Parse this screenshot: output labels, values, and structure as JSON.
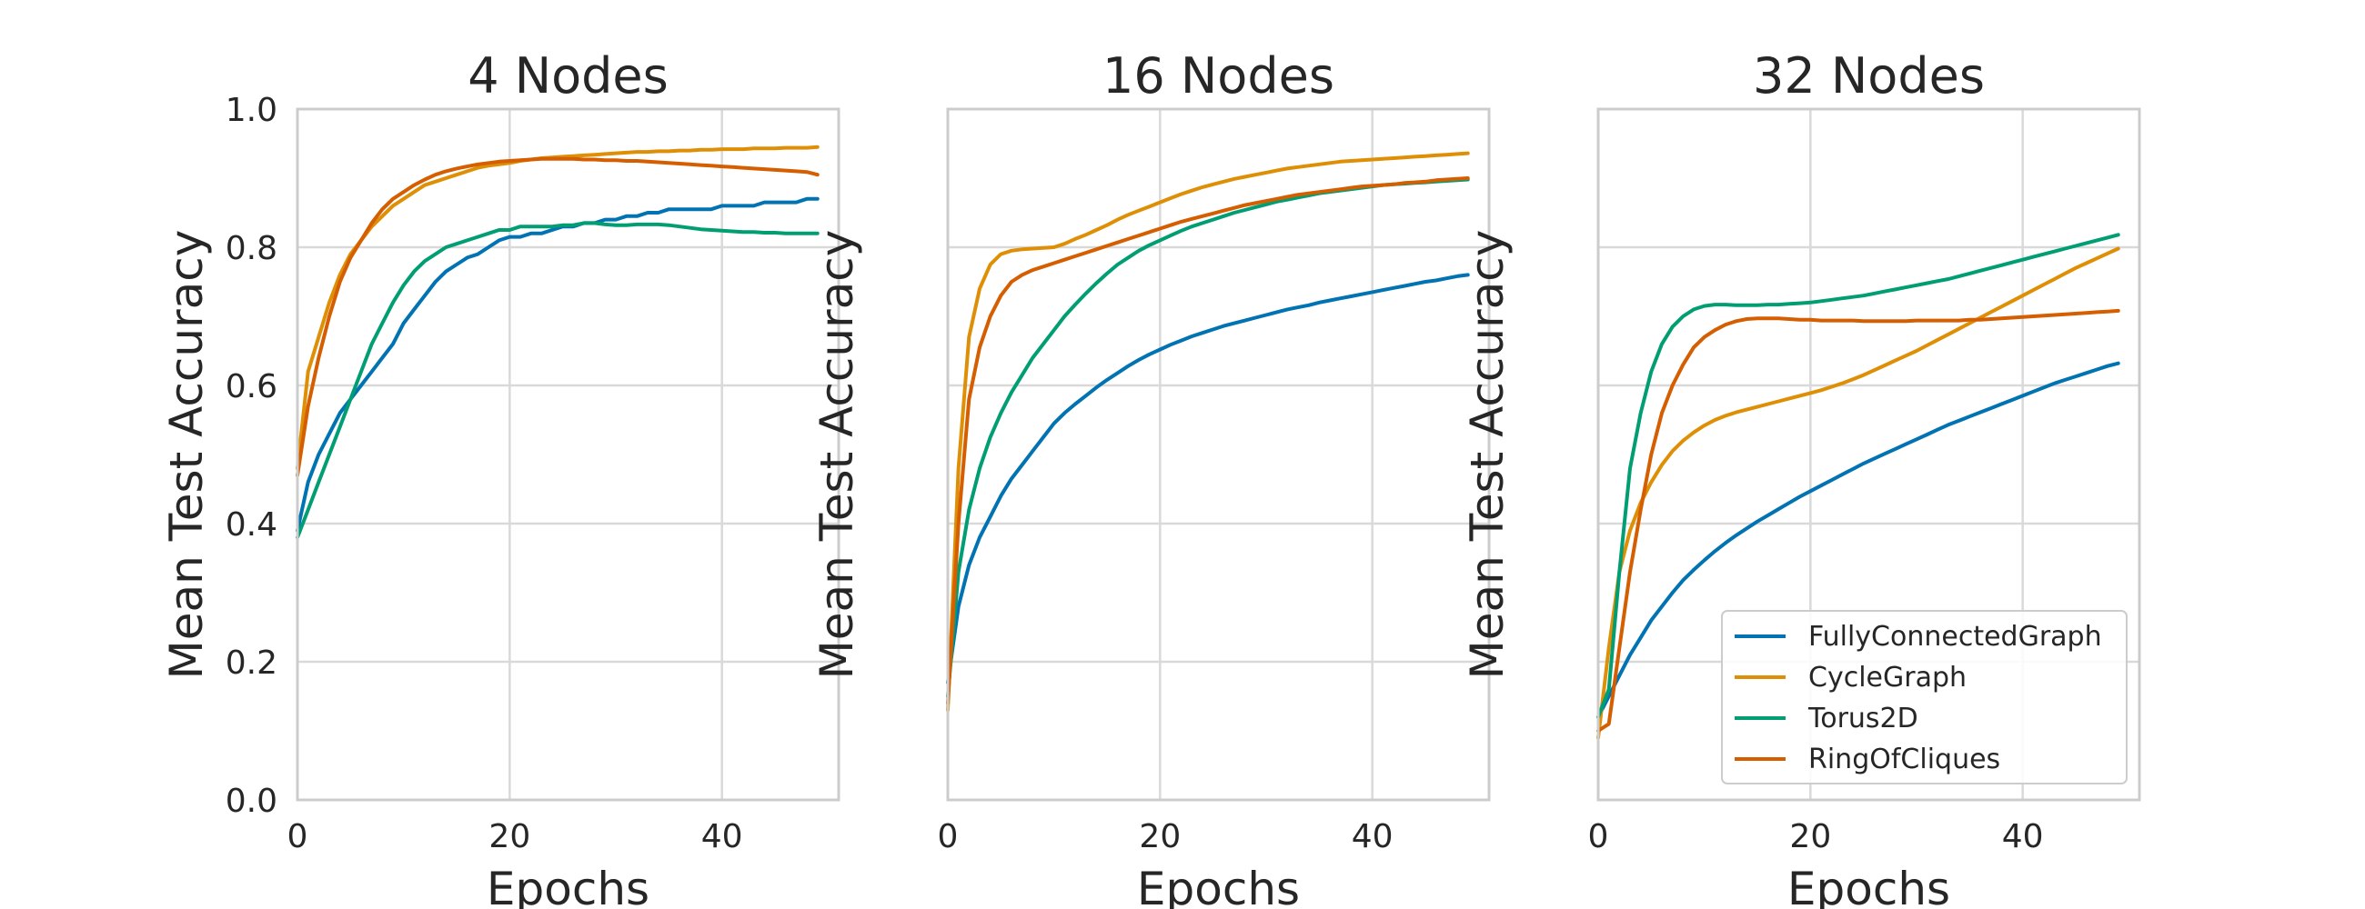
{
  "chart_data": [
    {
      "type": "line",
      "title": "4 Nodes",
      "xlabel": "Epochs",
      "ylabel": "Mean Test Accuracy",
      "xlim": [
        0,
        51
      ],
      "ylim": [
        0.0,
        1.0
      ],
      "xticks": [
        "0",
        "20",
        "40"
      ],
      "yticks": [
        "0.0",
        "0.2",
        "0.4",
        "0.6",
        "0.8",
        "1.0"
      ],
      "grid": true,
      "x": [
        0,
        1,
        2,
        3,
        4,
        5,
        6,
        7,
        8,
        9,
        10,
        11,
        12,
        13,
        14,
        15,
        16,
        17,
        18,
        19,
        20,
        21,
        22,
        23,
        24,
        25,
        26,
        27,
        28,
        29,
        30,
        31,
        32,
        33,
        34,
        35,
        36,
        37,
        38,
        39,
        40,
        41,
        42,
        43,
        44,
        45,
        46,
        47,
        48,
        49
      ],
      "series": [
        {
          "name": "FullyConnectedGraph",
          "color": "#0173b2",
          "values": [
            0.39,
            0.46,
            0.5,
            0.53,
            0.56,
            0.58,
            0.6,
            0.62,
            0.64,
            0.66,
            0.69,
            0.71,
            0.73,
            0.75,
            0.765,
            0.775,
            0.785,
            0.79,
            0.8,
            0.81,
            0.815,
            0.815,
            0.82,
            0.82,
            0.825,
            0.83,
            0.83,
            0.835,
            0.835,
            0.84,
            0.84,
            0.845,
            0.845,
            0.85,
            0.85,
            0.855,
            0.855,
            0.855,
            0.855,
            0.855,
            0.86,
            0.86,
            0.86,
            0.86,
            0.865,
            0.865,
            0.865,
            0.865,
            0.87,
            0.87
          ]
        },
        {
          "name": "CycleGraph",
          "color": "#de8f05",
          "values": [
            0.48,
            0.62,
            0.67,
            0.72,
            0.76,
            0.79,
            0.81,
            0.83,
            0.845,
            0.86,
            0.87,
            0.88,
            0.89,
            0.895,
            0.9,
            0.905,
            0.91,
            0.915,
            0.918,
            0.92,
            0.922,
            0.925,
            0.927,
            0.929,
            0.93,
            0.931,
            0.932,
            0.933,
            0.934,
            0.935,
            0.936,
            0.937,
            0.938,
            0.938,
            0.939,
            0.939,
            0.94,
            0.94,
            0.941,
            0.941,
            0.942,
            0.942,
            0.942,
            0.943,
            0.943,
            0.943,
            0.944,
            0.944,
            0.944,
            0.945
          ]
        },
        {
          "name": "Torus2D",
          "color": "#029e73",
          "values": [
            0.38,
            0.42,
            0.46,
            0.5,
            0.54,
            0.58,
            0.62,
            0.66,
            0.69,
            0.72,
            0.745,
            0.765,
            0.78,
            0.79,
            0.8,
            0.805,
            0.81,
            0.815,
            0.82,
            0.825,
            0.825,
            0.83,
            0.83,
            0.83,
            0.83,
            0.832,
            0.832,
            0.835,
            0.835,
            0.833,
            0.832,
            0.832,
            0.833,
            0.833,
            0.833,
            0.832,
            0.83,
            0.828,
            0.826,
            0.825,
            0.824,
            0.823,
            0.822,
            0.822,
            0.821,
            0.821,
            0.82,
            0.82,
            0.82,
            0.82
          ]
        },
        {
          "name": "RingOfCliques",
          "color": "#d55e00",
          "values": [
            0.47,
            0.57,
            0.64,
            0.7,
            0.75,
            0.785,
            0.81,
            0.835,
            0.855,
            0.87,
            0.88,
            0.89,
            0.898,
            0.905,
            0.91,
            0.914,
            0.917,
            0.92,
            0.922,
            0.924,
            0.925,
            0.926,
            0.927,
            0.928,
            0.928,
            0.928,
            0.928,
            0.927,
            0.927,
            0.926,
            0.926,
            0.925,
            0.925,
            0.924,
            0.923,
            0.922,
            0.921,
            0.92,
            0.919,
            0.918,
            0.917,
            0.916,
            0.915,
            0.914,
            0.913,
            0.912,
            0.911,
            0.91,
            0.909,
            0.905
          ]
        }
      ]
    },
    {
      "type": "line",
      "title": "16 Nodes",
      "xlabel": "Epochs",
      "ylabel": "Mean Test Accuracy",
      "xlim": [
        0,
        51
      ],
      "ylim": [
        0.0,
        1.0
      ],
      "xticks": [
        "0",
        "20",
        "40"
      ],
      "grid": true,
      "x": [
        0,
        1,
        2,
        3,
        4,
        5,
        6,
        7,
        8,
        9,
        10,
        11,
        12,
        13,
        14,
        15,
        16,
        17,
        18,
        19,
        20,
        21,
        22,
        23,
        24,
        25,
        26,
        27,
        28,
        29,
        30,
        31,
        32,
        33,
        34,
        35,
        36,
        37,
        38,
        39,
        40,
        41,
        42,
        43,
        44,
        45,
        46,
        47,
        48,
        49
      ],
      "series": [
        {
          "name": "FullyConnectedGraph",
          "color": "#0173b2",
          "values": [
            0.17,
            0.28,
            0.34,
            0.38,
            0.41,
            0.44,
            0.465,
            0.485,
            0.505,
            0.525,
            0.545,
            0.56,
            0.573,
            0.585,
            0.597,
            0.608,
            0.618,
            0.628,
            0.637,
            0.645,
            0.652,
            0.659,
            0.665,
            0.671,
            0.676,
            0.681,
            0.686,
            0.69,
            0.694,
            0.698,
            0.702,
            0.706,
            0.71,
            0.713,
            0.716,
            0.72,
            0.723,
            0.726,
            0.729,
            0.732,
            0.735,
            0.738,
            0.741,
            0.744,
            0.747,
            0.75,
            0.752,
            0.755,
            0.758,
            0.76
          ]
        },
        {
          "name": "CycleGraph",
          "color": "#de8f05",
          "values": [
            0.13,
            0.48,
            0.67,
            0.74,
            0.775,
            0.79,
            0.795,
            0.797,
            0.798,
            0.799,
            0.8,
            0.805,
            0.812,
            0.818,
            0.825,
            0.832,
            0.84,
            0.847,
            0.853,
            0.859,
            0.865,
            0.871,
            0.877,
            0.882,
            0.887,
            0.891,
            0.895,
            0.899,
            0.902,
            0.905,
            0.908,
            0.911,
            0.914,
            0.916,
            0.918,
            0.92,
            0.922,
            0.924,
            0.925,
            0.926,
            0.927,
            0.928,
            0.929,
            0.93,
            0.931,
            0.932,
            0.933,
            0.934,
            0.935,
            0.936
          ]
        },
        {
          "name": "Torus2D",
          "color": "#029e73",
          "values": [
            0.15,
            0.33,
            0.42,
            0.48,
            0.525,
            0.56,
            0.59,
            0.615,
            0.64,
            0.66,
            0.68,
            0.7,
            0.717,
            0.733,
            0.748,
            0.762,
            0.775,
            0.785,
            0.795,
            0.803,
            0.81,
            0.817,
            0.824,
            0.83,
            0.835,
            0.84,
            0.845,
            0.85,
            0.854,
            0.858,
            0.862,
            0.866,
            0.869,
            0.872,
            0.875,
            0.878,
            0.88,
            0.882,
            0.884,
            0.886,
            0.888,
            0.89,
            0.891,
            0.892,
            0.893,
            0.894,
            0.895,
            0.896,
            0.897,
            0.898
          ]
        },
        {
          "name": "RingOfCliques",
          "color": "#d55e00",
          "values": [
            0.14,
            0.4,
            0.58,
            0.655,
            0.7,
            0.73,
            0.75,
            0.76,
            0.767,
            0.772,
            0.777,
            0.782,
            0.787,
            0.792,
            0.797,
            0.802,
            0.807,
            0.812,
            0.817,
            0.822,
            0.827,
            0.832,
            0.837,
            0.841,
            0.845,
            0.849,
            0.853,
            0.857,
            0.861,
            0.864,
            0.867,
            0.87,
            0.873,
            0.876,
            0.878,
            0.88,
            0.882,
            0.884,
            0.886,
            0.888,
            0.889,
            0.89,
            0.891,
            0.893,
            0.894,
            0.895,
            0.897,
            0.898,
            0.899,
            0.9
          ]
        }
      ]
    },
    {
      "type": "line",
      "title": "32 Nodes",
      "xlabel": "Epochs",
      "ylabel": "Mean Test Accuracy",
      "xlim": [
        0,
        51
      ],
      "ylim": [
        0.0,
        1.0
      ],
      "xticks": [
        "0",
        "20",
        "40"
      ],
      "grid": true,
      "legend": "lower-right",
      "x": [
        0,
        1,
        2,
        3,
        4,
        5,
        6,
        7,
        8,
        9,
        10,
        11,
        12,
        13,
        14,
        15,
        16,
        17,
        18,
        19,
        20,
        21,
        22,
        23,
        24,
        25,
        26,
        27,
        28,
        29,
        30,
        31,
        32,
        33,
        34,
        35,
        36,
        37,
        38,
        39,
        40,
        41,
        42,
        43,
        44,
        45,
        46,
        47,
        48,
        49
      ],
      "series": [
        {
          "name": "FullyConnectedGraph",
          "color": "#0173b2",
          "values": [
            0.12,
            0.15,
            0.18,
            0.21,
            0.235,
            0.26,
            0.28,
            0.3,
            0.318,
            0.333,
            0.347,
            0.36,
            0.372,
            0.383,
            0.393,
            0.403,
            0.412,
            0.421,
            0.43,
            0.439,
            0.447,
            0.455,
            0.463,
            0.471,
            0.479,
            0.487,
            0.494,
            0.501,
            0.508,
            0.515,
            0.522,
            0.529,
            0.536,
            0.543,
            0.549,
            0.555,
            0.561,
            0.567,
            0.573,
            0.579,
            0.585,
            0.591,
            0.597,
            0.603,
            0.608,
            0.613,
            0.618,
            0.623,
            0.628,
            0.632
          ]
        },
        {
          "name": "CycleGraph",
          "color": "#de8f05",
          "values": [
            0.09,
            0.22,
            0.33,
            0.39,
            0.43,
            0.46,
            0.485,
            0.505,
            0.52,
            0.532,
            0.542,
            0.55,
            0.556,
            0.561,
            0.565,
            0.569,
            0.573,
            0.577,
            0.581,
            0.585,
            0.589,
            0.593,
            0.598,
            0.603,
            0.609,
            0.615,
            0.622,
            0.629,
            0.636,
            0.643,
            0.65,
            0.658,
            0.666,
            0.674,
            0.682,
            0.69,
            0.698,
            0.706,
            0.714,
            0.722,
            0.73,
            0.738,
            0.746,
            0.754,
            0.762,
            0.77,
            0.777,
            0.784,
            0.791,
            0.798
          ]
        },
        {
          "name": "Torus2D",
          "color": "#029e73",
          "values": [
            0.12,
            0.16,
            0.33,
            0.48,
            0.56,
            0.62,
            0.66,
            0.685,
            0.7,
            0.71,
            0.715,
            0.717,
            0.717,
            0.716,
            0.716,
            0.716,
            0.717,
            0.717,
            0.718,
            0.719,
            0.72,
            0.722,
            0.724,
            0.726,
            0.728,
            0.73,
            0.733,
            0.736,
            0.739,
            0.742,
            0.745,
            0.748,
            0.751,
            0.754,
            0.758,
            0.762,
            0.766,
            0.77,
            0.774,
            0.778,
            0.782,
            0.786,
            0.79,
            0.794,
            0.798,
            0.802,
            0.806,
            0.81,
            0.814,
            0.818
          ]
        },
        {
          "name": "RingOfCliques",
          "color": "#d55e00",
          "values": [
            0.1,
            0.11,
            0.22,
            0.33,
            0.42,
            0.5,
            0.56,
            0.6,
            0.63,
            0.655,
            0.67,
            0.68,
            0.688,
            0.693,
            0.696,
            0.697,
            0.697,
            0.697,
            0.696,
            0.695,
            0.695,
            0.694,
            0.694,
            0.694,
            0.694,
            0.693,
            0.693,
            0.693,
            0.693,
            0.693,
            0.694,
            0.694,
            0.694,
            0.694,
            0.694,
            0.695,
            0.695,
            0.696,
            0.697,
            0.698,
            0.699,
            0.7,
            0.701,
            0.702,
            0.703,
            0.704,
            0.705,
            0.706,
            0.707,
            0.708
          ]
        }
      ]
    }
  ]
}
